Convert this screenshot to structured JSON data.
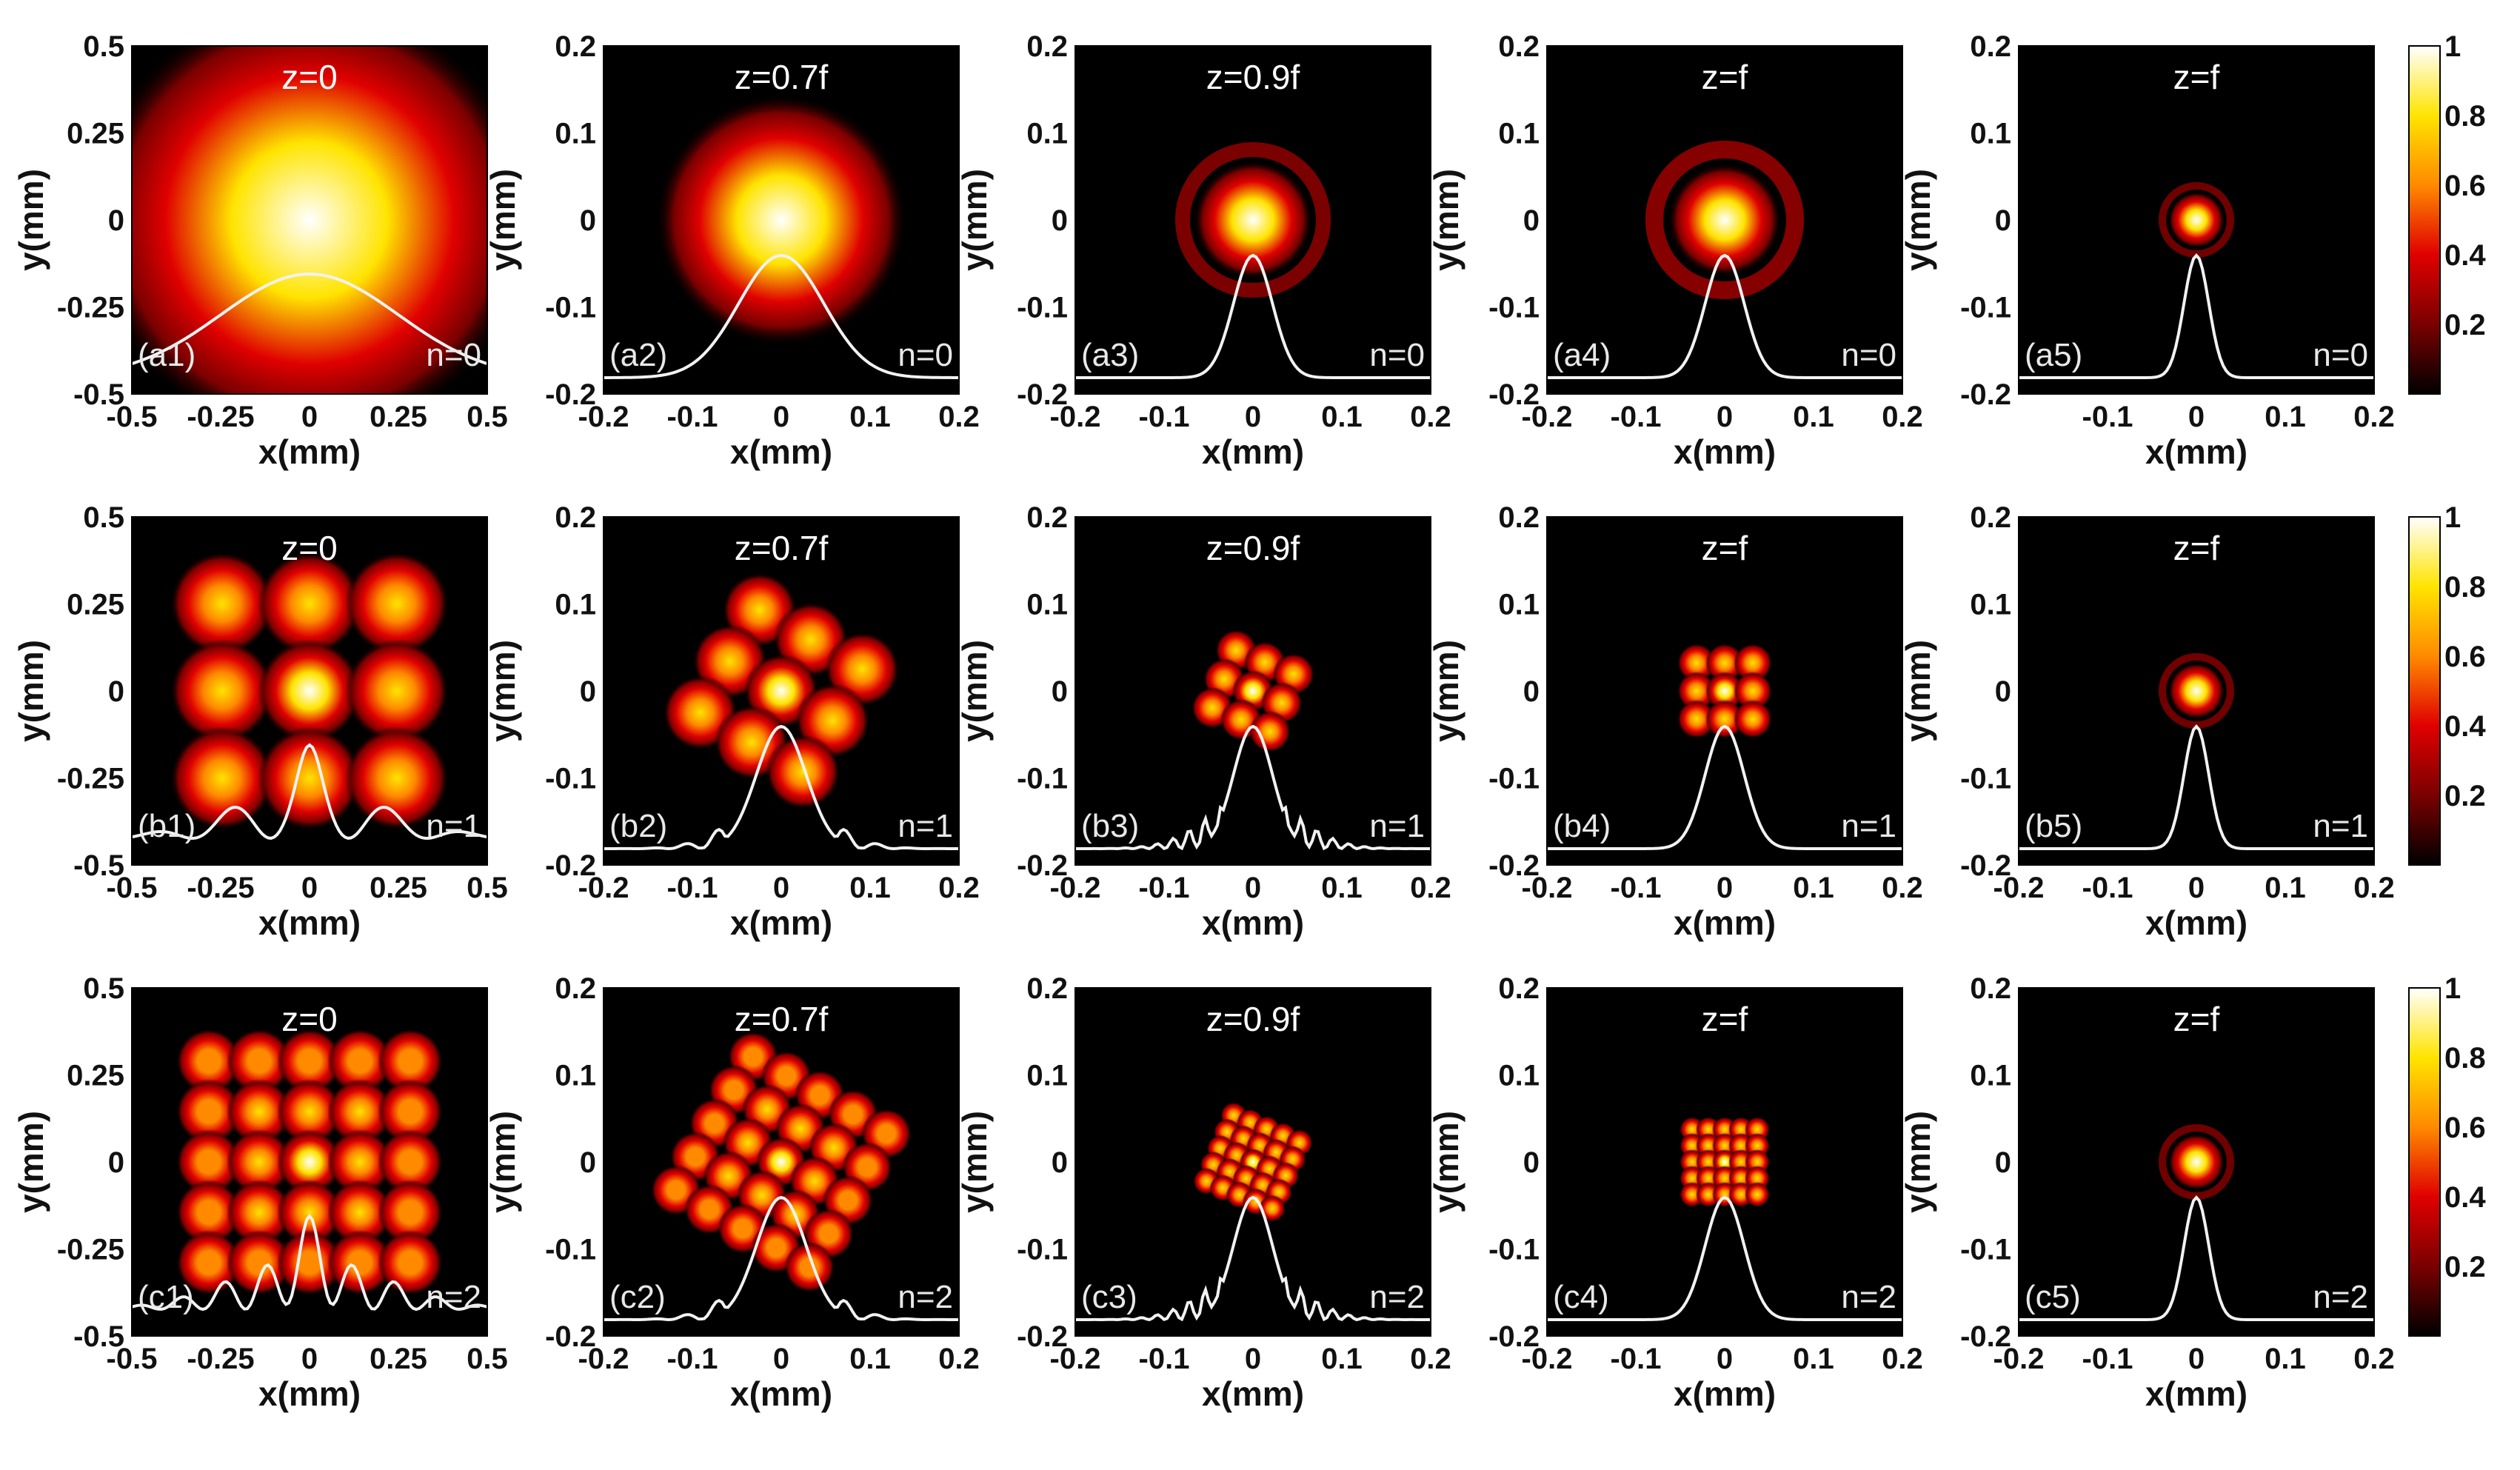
{
  "colormap": {
    "name": "hot",
    "stops": [
      "#000000",
      "#7a0000",
      "#e00000",
      "#ff8a00",
      "#ffe400",
      "#ffffff"
    ]
  },
  "chart_data": [
    {
      "id": "a1",
      "type": "heatmap",
      "title": "z=0",
      "label": "(a1)",
      "n_label": "n=0",
      "n": 0,
      "xlabel": "x(mm)",
      "ylabel": "y(mm)",
      "xlim": [
        -0.5,
        0.5
      ],
      "ylim": [
        -0.5,
        0.5
      ],
      "xticks": [
        "-0.5",
        "-0.25",
        "0",
        "0.25",
        "0.5"
      ],
      "yticks": [
        "0.5",
        "0.25",
        "0",
        "-0.25",
        "-0.5"
      ]
    },
    {
      "id": "a2",
      "type": "heatmap",
      "title": "z=0.7f",
      "label": "(a2)",
      "n_label": "n=0",
      "n": 0,
      "xlabel": "x(mm)",
      "ylabel": "y(mm)",
      "xlim": [
        -0.2,
        0.2
      ],
      "ylim": [
        -0.2,
        0.2
      ],
      "xticks": [
        "-0.2",
        "-0.1",
        "0",
        "0.1",
        "0.2"
      ],
      "yticks": [
        "0.2",
        "0.1",
        "0",
        "-0.1",
        "-0.2"
      ]
    },
    {
      "id": "a3",
      "type": "heatmap",
      "title": "z=0.9f",
      "label": "(a3)",
      "n_label": "n=0",
      "n": 0,
      "xlabel": "x(mm)",
      "ylabel": "y(mm)",
      "xlim": [
        -0.2,
        0.2
      ],
      "ylim": [
        -0.2,
        0.2
      ],
      "xticks": [
        "-0.2",
        "-0.1",
        "0",
        "0.1",
        "0.2"
      ],
      "yticks": [
        "0.2",
        "0.1",
        "0",
        "-0.1",
        "-0.2"
      ]
    },
    {
      "id": "a4",
      "type": "heatmap",
      "title": "z=f",
      "label": "(a4)",
      "n_label": "n=0",
      "n": 0,
      "xlabel": "x(mm)",
      "ylabel": "y(mm)",
      "xlim": [
        -0.2,
        0.2
      ],
      "ylim": [
        -0.2,
        0.2
      ],
      "xticks": [
        "-0.2",
        "-0.1",
        "0",
        "0.1",
        "0.2"
      ],
      "yticks": [
        "0.2",
        "0.1",
        "0",
        "-0.1",
        "-0.2"
      ]
    },
    {
      "id": "a5",
      "type": "heatmap",
      "title": "z=f",
      "label": "(a5)",
      "n_label": "n=0",
      "n": 0,
      "xlabel": "x(mm)",
      "ylabel": "y(mm)",
      "xlim": [
        -0.2,
        0.2
      ],
      "ylim": [
        -0.2,
        0.2
      ],
      "xticks": [
        "-0.1",
        "0",
        "0.1",
        "0.2"
      ],
      "yticks": [
        "0.2",
        "0.1",
        "0",
        "-0.1",
        "-0.2"
      ],
      "colorbar": {
        "range": [
          0,
          1
        ],
        "ticks": [
          "1",
          "0.8",
          "0.6",
          "0.4",
          "0.2"
        ]
      }
    },
    {
      "id": "b1",
      "type": "heatmap",
      "title": "z=0",
      "label": "(b1)",
      "n_label": "n=1",
      "n": 1,
      "xlabel": "x(mm)",
      "ylabel": "y(mm)",
      "xlim": [
        -0.5,
        0.5
      ],
      "ylim": [
        -0.5,
        0.5
      ],
      "xticks": [
        "-0.5",
        "-0.25",
        "0",
        "0.25",
        "0.5"
      ],
      "yticks": [
        "0.5",
        "0.25",
        "0",
        "-0.25",
        "-0.5"
      ]
    },
    {
      "id": "b2",
      "type": "heatmap",
      "title": "z=0.7f",
      "label": "(b2)",
      "n_label": "n=1",
      "n": 1,
      "xlabel": "x(mm)",
      "ylabel": "y(mm)",
      "xlim": [
        -0.2,
        0.2
      ],
      "ylim": [
        -0.2,
        0.2
      ],
      "xticks": [
        "-0.2",
        "-0.1",
        "0",
        "0.1",
        "0.2"
      ],
      "yticks": [
        "0.2",
        "0.1",
        "0",
        "-0.1",
        "-0.2"
      ]
    },
    {
      "id": "b3",
      "type": "heatmap",
      "title": "z=0.9f",
      "label": "(b3)",
      "n_label": "n=1",
      "n": 1,
      "xlabel": "x(mm)",
      "ylabel": "y(mm)",
      "xlim": [
        -0.2,
        0.2
      ],
      "ylim": [
        -0.2,
        0.2
      ],
      "xticks": [
        "-0.2",
        "-0.1",
        "0",
        "0.1",
        "0.2"
      ],
      "yticks": [
        "0.2",
        "0.1",
        "0",
        "-0.1",
        "-0.2"
      ]
    },
    {
      "id": "b4",
      "type": "heatmap",
      "title": "z=f",
      "label": "(b4)",
      "n_label": "n=1",
      "n": 1,
      "xlabel": "x(mm)",
      "ylabel": "y(mm)",
      "xlim": [
        -0.2,
        0.2
      ],
      "ylim": [
        -0.2,
        0.2
      ],
      "xticks": [
        "-0.2",
        "-0.1",
        "0",
        "0.1",
        "0.2"
      ],
      "yticks": [
        "0.2",
        "0.1",
        "0",
        "-0.1",
        "-0.2"
      ]
    },
    {
      "id": "b5",
      "type": "heatmap",
      "title": "z=f",
      "label": "(b5)",
      "n_label": "n=1",
      "n": 1,
      "xlabel": "x(mm)",
      "ylabel": "y(mm)",
      "xlim": [
        -0.2,
        0.2
      ],
      "ylim": [
        -0.2,
        0.2
      ],
      "xticks": [
        "-0.2",
        "-0.1",
        "0",
        "0.1",
        "0.2"
      ],
      "yticks": [
        "0.2",
        "0.1",
        "0",
        "-0.1",
        "-0.2"
      ],
      "colorbar": {
        "range": [
          0,
          1
        ],
        "ticks": [
          "1",
          "0.8",
          "0.6",
          "0.4",
          "0.2"
        ]
      }
    },
    {
      "id": "c1",
      "type": "heatmap",
      "title": "z=0",
      "label": "(c1)",
      "n_label": "n=2",
      "n": 2,
      "xlabel": "x(mm)",
      "ylabel": "y(mm)",
      "xlim": [
        -0.5,
        0.5
      ],
      "ylim": [
        -0.5,
        0.5
      ],
      "xticks": [
        "-0.5",
        "-0.25",
        "0",
        "0.25",
        "0.5"
      ],
      "yticks": [
        "0.5",
        "0.25",
        "0",
        "-0.25",
        "-0.5"
      ]
    },
    {
      "id": "c2",
      "type": "heatmap",
      "title": "z=0.7f",
      "label": "(c2)",
      "n_label": "n=2",
      "n": 2,
      "xlabel": "x(mm)",
      "ylabel": "y(mm)",
      "xlim": [
        -0.2,
        0.2
      ],
      "ylim": [
        -0.2,
        0.2
      ],
      "xticks": [
        "-0.2",
        "-0.1",
        "0",
        "0.1",
        "0.2"
      ],
      "yticks": [
        "0.2",
        "0.1",
        "0",
        "-0.1",
        "-0.2"
      ]
    },
    {
      "id": "c3",
      "type": "heatmap",
      "title": "z=0.9f",
      "label": "(c3)",
      "n_label": "n=2",
      "n": 2,
      "xlabel": "x(mm)",
      "ylabel": "y(mm)",
      "xlim": [
        -0.2,
        0.2
      ],
      "ylim": [
        -0.2,
        0.2
      ],
      "xticks": [
        "-0.2",
        "-0.1",
        "0",
        "0.1",
        "0.2"
      ],
      "yticks": [
        "0.2",
        "0.1",
        "0",
        "-0.1",
        "-0.2"
      ]
    },
    {
      "id": "c4",
      "type": "heatmap",
      "title": "z=f",
      "label": "(c4)",
      "n_label": "n=2",
      "n": 2,
      "xlabel": "x(mm)",
      "ylabel": "y(mm)",
      "xlim": [
        -0.2,
        0.2
      ],
      "ylim": [
        -0.2,
        0.2
      ],
      "xticks": [
        "-0.2",
        "-0.1",
        "0",
        "0.1",
        "0.2"
      ],
      "yticks": [
        "0.2",
        "0.1",
        "0",
        "-0.1",
        "-0.2"
      ]
    },
    {
      "id": "c5",
      "type": "heatmap",
      "title": "z=f",
      "label": "(c5)",
      "n_label": "n=2",
      "n": 2,
      "xlabel": "x(mm)",
      "ylabel": "y(mm)",
      "xlim": [
        -0.2,
        0.2
      ],
      "ylim": [
        -0.2,
        0.2
      ],
      "xticks": [
        "-0.2",
        "-0.1",
        "0",
        "0.1",
        "0.2"
      ],
      "yticks": [
        "0.2",
        "0.1",
        "0",
        "-0.1",
        "-0.2"
      ],
      "colorbar": {
        "range": [
          0,
          1
        ],
        "ticks": [
          "1",
          "0.8",
          "0.6",
          "0.4",
          "0.2"
        ]
      }
    }
  ]
}
